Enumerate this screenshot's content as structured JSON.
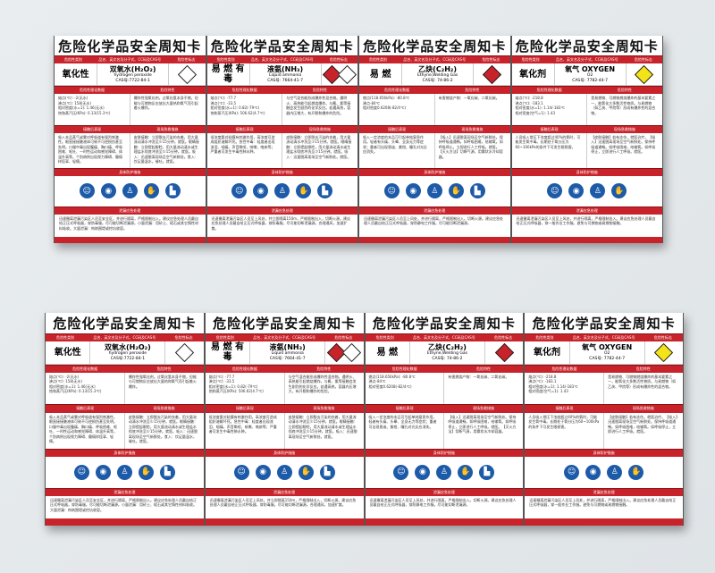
{
  "headers": {
    "title": "危险化学品安全周知卡",
    "category": "危险性类别",
    "name_formula": "品名、英文名及分子式、CC码及CAS号",
    "symbol": "危险性标志",
    "physchem": "危险性理化数据",
    "hazard": "危险特性",
    "contact": "接触后表现",
    "first_aid": "现场急救措施",
    "ppe": "身体防护措施",
    "leak": "泄漏应急处理"
  },
  "cards": [
    {
      "category": "氧化性",
      "name_cn": "双氧水(H₂O₂)",
      "name_en": "hydrogen peroxide",
      "cas": "CAS号:7722-84-1",
      "symbols": [
        {
          "icon": "corrosive-icon",
          "color": "#ffffff"
        }
      ],
      "physchem": [
        "熔点(℃): -2(无水)",
        "沸点(℃): 158(无水)",
        "相对密度(水=1): 1.46(无水)",
        "饱和蒸汽压(KPa): 0.13(15.3℃)"
      ],
      "hazard": "爆炸性强氧化剂。过氧化氢本身不燃，但能与可燃物反应放出大量热和氧气而引起着火爆炸。",
      "contact": "吸入本品蒸气或雾对呼吸道有强烈刺激性。眼直接接触液体可致不可逆损伤甚至失明。口服中毒出现腹痛、胸口痛、呼吸困难、呕吐、一时性运动和感觉障碍、体温升高等。个别病例出现视力障碍、癫痫样痉挛、轻瘫。",
      "first_aid": "皮肤接触：立即脱去污染的衣着，用大量流动清水冲洗至少15分钟。就医。眼睛接触：立即提起眼睑，用大量流动清水或生理盐水彻底冲洗至少15分钟。就医。吸入：迅速脱离现场至空气新鲜处。食入：饮足量温水，催吐。就医。",
      "ppe": [
        "respirator-icon",
        "goggles-icon",
        "protective-suit-icon",
        "glove-icon",
        "boot-icon"
      ],
      "leak": "迅速撤离泄漏污染区人员至安全区，并进行隔离，严格限制出入。建议应急处理人员戴自给正压式呼吸器，穿防毒服。尽可能切断泄漏源。小量泄漏：用砂土、蛭石或其它惰性材料吸收。大量泄漏：构筑围堤或挖坑收容。"
    },
    {
      "category": "易 燃 有 毒",
      "name_cn": "液氨(NH₃)",
      "name_en": "Liquid ammonia",
      "cas": "CAS号: 7664-41-7",
      "symbols": [
        {
          "icon": "flammable-icon",
          "color": "#c8232a"
        },
        {
          "icon": "toxic-icon",
          "color": "#ffffff"
        }
      ],
      "physchem": [
        "熔点(℃): -77.7",
        "沸点(℃): -33.5",
        "相对密度(水=1): 0.82(-79℃)",
        "饱和蒸汽压(KPa): 506.62(4.7℃)"
      ],
      "hazard": "与空气混合能形成爆炸性混合物。遇明火、高热能引起燃烧爆炸。与氟、氯等接触会发生剧烈的化学反应。若遇高热，容器内压增大，有开裂和爆炸的危险。",
      "contact": "低浓度氨对粘膜有刺激作用，高浓度可造成组织溶解坏死。急性中毒：轻度者出现流泪、咽痛、声音嘶哑、咳嗽、咯痰等；严重者可发生中毒性肺水肿。",
      "first_aid": "皮肤接触：立即脱去污染的衣着，用大量流动清水冲洗至少15分钟。就医。眼睛接触：立即提起眼睑，用大量流动清水或生理盐水彻底冲洗至少15分钟。就医。吸入：迅速脱离现场至空气新鲜处。就医。",
      "ppe": [
        "respirator-icon",
        "goggles-icon",
        "protective-suit-icon",
        "glove-icon",
        "boot-icon"
      ],
      "leak": "迅速撤离泄漏污染区人员至上风处，并立即隔离150m，严格限制出入，切断火源。建议应急处理人员戴自给正压式呼吸器，穿防毒服。尽可能切断泄漏源。合理通风，加速扩散。"
    },
    {
      "category": "易 燃",
      "name_cn": "乙炔(C₂H₂)",
      "name_en": "Ethyne,Welding Gas",
      "cas": "CAS号: 74-86-2",
      "symbols": [
        {
          "icon": "flammable-icon",
          "color": "#c8232a"
        }
      ],
      "physchem": [
        "燃点(118.656kPa): -80.8℃",
        "沸点-84℃",
        "相对密度0.6208(-82/4℃)"
      ],
      "hazard": "有害燃烧产物：一氧化碳、二氧化碳。",
      "contact": "吸入一定浓度的本品可引起单纯窒息作用。轻者有头痛、头晕、全身无力等症状；重者可出现昏迷、紫绀、瞳孔对光反应消失。",
      "first_aid": "【吸入】迅速脱离现场至空气新鲜处。保持呼吸道通畅。如呼吸困难，给输氧。如呼吸停止，立即进行人工呼吸。就医。【灭火方法】切断气源，用雾状水冷却容器。",
      "ppe": [
        "respirator-icon",
        "goggles-icon",
        "protective-suit-icon",
        "glove-icon",
        "boot-icon"
      ],
      "leak": "迅速撤离泄漏污染区人员至上风处，并进行隔离，严格限制出入。切断火源。建议应急处理人员戴自给正压式呼吸器，穿防静电工作服。尽可能切断泄漏源。"
    },
    {
      "category": "氧化剂",
      "name_cn": "氧气 OXYGEN",
      "name_en": "O2",
      "cas": "CAS号: 7782-44-7",
      "symbols": [
        {
          "icon": "oxidizer-icon",
          "color": "#f5e31a"
        }
      ],
      "physchem": [
        "熔点(℃): -218.8",
        "沸点(℃): -183.1",
        "相对密度(水=1): 1.14/-183℃",
        "相对密度(空气=1): 1.43"
      ],
      "hazard": "是易燃物、可燃物燃烧爆炸的基本要素之一，能氧化大多数活性物质。与易燃物（如乙炔、甲烷等）形成有爆炸性的混合物。",
      "contact": "人员吸入常压下浓度超过40%的氧时，可能发生氧中毒。长期处于氧分压为60~100kPa的条件下可发生眼损害。",
      "first_aid": "【皮肤接触】若有冻伤，就医治疗。【吸入】迅速脱离现场至空气新鲜处。保持呼吸道通畅。如呼吸困难，给输氧。如呼吸停止，立即进行人工呼吸。就医。",
      "ppe": [
        "respirator-icon",
        "goggles-icon",
        "protective-suit-icon",
        "glove-icon"
      ],
      "leak": "迅速撤离泄漏污染区人员至上风处，并进行隔离，严格限制出入。建议应急处理人员戴自给正压式呼吸器，穿一般作业工作服。避免与可燃物或易燃物接触。"
    }
  ]
}
